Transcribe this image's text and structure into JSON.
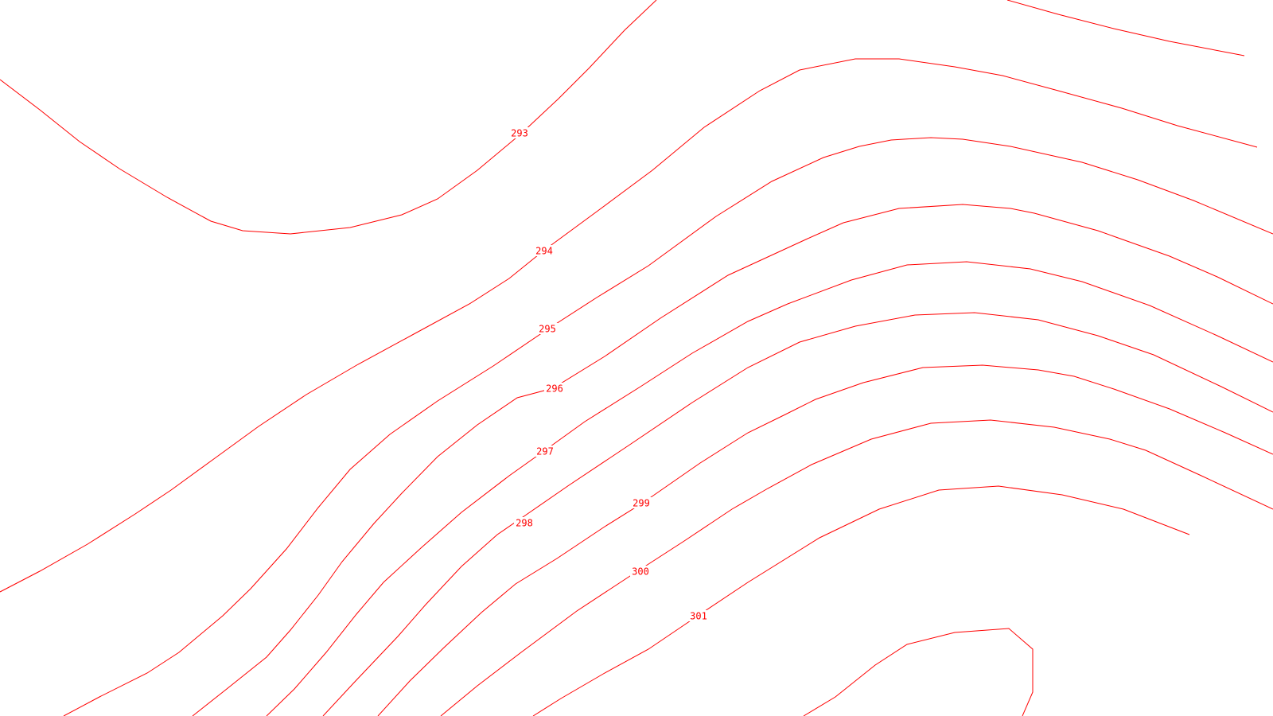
{
  "map": {
    "line_color": "#ff0000",
    "background_color": "#ffffff",
    "contours": [
      {
        "id": "293",
        "label": "293"
      },
      {
        "id": "294",
        "label": "294"
      },
      {
        "id": "295",
        "label": "295"
      },
      {
        "id": "296",
        "label": "296"
      },
      {
        "id": "297",
        "label": "297"
      },
      {
        "id": "298",
        "label": "298"
      },
      {
        "id": "299",
        "label": "299"
      },
      {
        "id": "300",
        "label": "300"
      },
      {
        "id": "301",
        "label": "301"
      }
    ]
  }
}
